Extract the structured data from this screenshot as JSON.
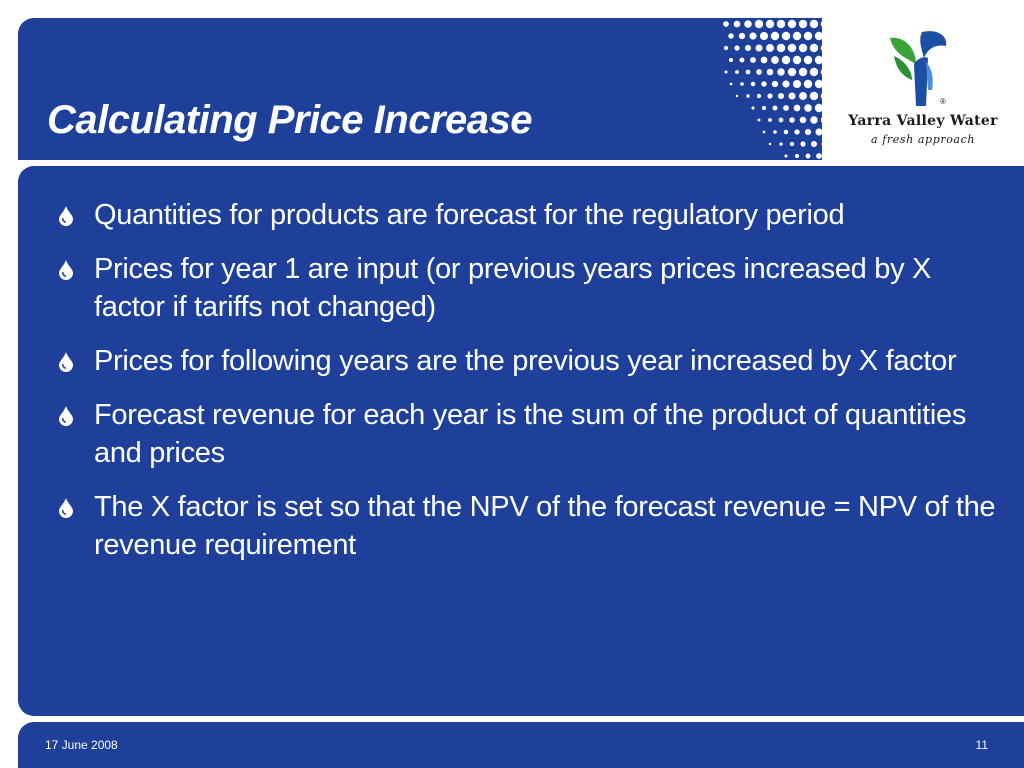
{
  "slide": {
    "title": "Calculating Price Increase"
  },
  "logo": {
    "name": "Yarra Valley Water",
    "tagline": "a fresh approach",
    "registered": "®"
  },
  "bullets": [
    {
      "text": "Quantities for products are forecast for the regulatory period"
    },
    {
      "text": "Prices for year 1 are input (or previous years prices increased by X factor if tariffs not changed)"
    },
    {
      "text": "Prices for following years are the previous year increased by X factor"
    },
    {
      "text": "Forecast revenue for each year is the sum of the product of quantities and prices"
    },
    {
      "text": "The X factor is set so that the NPV of the forecast revenue = NPV of the revenue requirement"
    }
  ],
  "footer": {
    "date": "17 June 2008",
    "page_number": "11"
  },
  "icons": {
    "bullet": "water-drop-icon",
    "logo": "yarra-valley-water-logo-icon"
  },
  "colors": {
    "background_blue": "#1e3f9a",
    "text": "#ffffff",
    "logo_green": "#3aa43a",
    "logo_blue": "#1b4fa3"
  }
}
